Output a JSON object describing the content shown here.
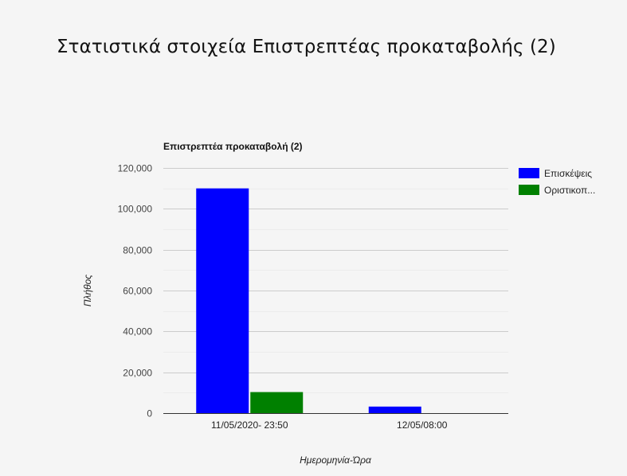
{
  "page": {
    "title": "Στατιστικά στοιχεία Επιστρεπτέας προκαταβολής (2)"
  },
  "chart_data": {
    "type": "bar",
    "title": "Επιστρεπτέα προκαταβολή (2)",
    "xlabel": "Ημερομηνία-Ώρα",
    "ylabel": "Πλήθος",
    "categories": [
      "11/05/2020- 23:50",
      "12/05/08:00"
    ],
    "series": [
      {
        "name": "Επισκέψεις",
        "values": [
          110000,
          3200
        ],
        "color": "#0000ff"
      },
      {
        "name": "Οριστικοπ...",
        "values": [
          10300,
          0
        ],
        "color": "#008000"
      }
    ],
    "ylim": [
      0,
      120000
    ],
    "yticks": [
      0,
      20000,
      40000,
      60000,
      80000,
      100000,
      120000
    ],
    "ytick_labels": [
      "0",
      "20,000",
      "40,000",
      "60,000",
      "80,000",
      "100,000",
      "120,000"
    ],
    "grid": true,
    "legend_position": "right"
  }
}
